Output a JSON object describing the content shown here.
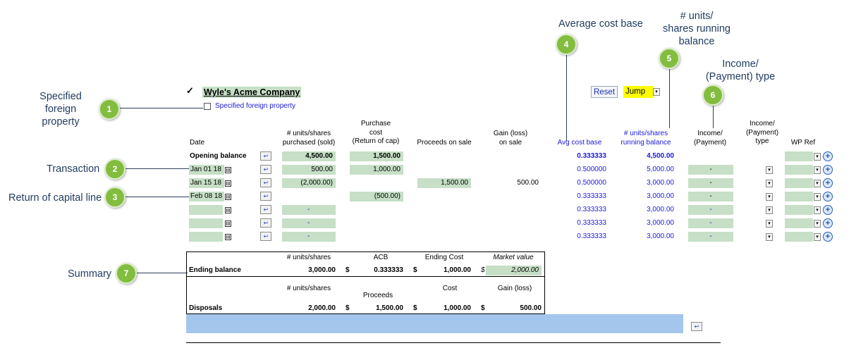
{
  "callouts": {
    "c1": {
      "num": "1",
      "line1": "Specified",
      "line2": "foreign property"
    },
    "c2": {
      "num": "2",
      "label": "Transaction"
    },
    "c3": {
      "num": "3",
      "label": "Return of capital line"
    },
    "c4": {
      "num": "4",
      "label": "Average cost base"
    },
    "c5": {
      "num": "5",
      "line1": "# units/",
      "line2": "shares running",
      "line3": "balance"
    },
    "c6": {
      "num": "6",
      "line1": "Income/",
      "line2": "(Payment) type"
    },
    "c7": {
      "num": "7",
      "label": "Summary"
    }
  },
  "company": {
    "checkbox": "✓",
    "name": "Wyle's Acme Company",
    "specified_label": "Specified foreign property"
  },
  "toolbar": {
    "reset": "Reset",
    "jump": "Jump"
  },
  "headers": {
    "date": "Date",
    "units_1": "# units/shares",
    "units_2": "purchased (sold)",
    "purchase_1": "Purchase",
    "purchase_2": "cost",
    "purchase_3": "(Return of cap)",
    "proceeds": "Proceeds on sale",
    "gain_1": "Gain (loss)",
    "gain_2": "on sale",
    "acb": "Avg cost base",
    "running_1": "# units/shares",
    "running_2": "running balance",
    "income_1": "Income/",
    "income_2": "(Payment)",
    "itype_1": "Income/",
    "itype_2": "(Payment)",
    "itype_3": "type",
    "wpref": "WP Ref"
  },
  "opening": {
    "label": "Opening balance",
    "units": "4,500.00",
    "cost": "1,500.00",
    "acb": "0.333333",
    "running": "4,500.00"
  },
  "rows": [
    {
      "date": "Jan 01 18",
      "units": "500.00",
      "cost": "1,000.00",
      "proceeds": "",
      "gain": "",
      "acb": "0.500000",
      "running": "5,000.00",
      "income": "-"
    },
    {
      "date": "Jan 15 18",
      "units": "(2,000.00)",
      "cost": "",
      "proceeds": "1,500.00",
      "gain": "500.00",
      "acb": "0.500000",
      "running": "3,000.00",
      "income": "-"
    },
    {
      "date": "Feb 08 18",
      "units": "",
      "cost": "(500.00)",
      "proceeds": "",
      "gain": "",
      "acb": "0.333333",
      "running": "3,000.00",
      "income": "-"
    },
    {
      "date": "",
      "units": "-",
      "cost": "",
      "proceeds": "",
      "gain": "",
      "acb": "0.333333",
      "running": "3,000.00",
      "income": "-"
    },
    {
      "date": "",
      "units": "-",
      "cost": "",
      "proceeds": "",
      "gain": "",
      "acb": "0.333333",
      "running": "3,000.00",
      "income": "-"
    },
    {
      "date": "",
      "units": "-",
      "cost": "",
      "proceeds": "",
      "gain": "",
      "acb": "0.333333",
      "running": "3,000.00",
      "income": "-"
    }
  ],
  "summary": {
    "hdr_units": "# units/shares",
    "hdr_acb": "ACB",
    "hdr_ending_cost": "Ending Cost",
    "hdr_market": "Market value",
    "ending_label": "Ending balance",
    "ending_units": "3,000.00",
    "dollar": "$",
    "ending_acb": "0.333333",
    "ending_cost": "1,000.00",
    "market": "2,000.00",
    "hdr2_units": "# units/shares",
    "hdr2_proceeds": "Proceeds",
    "hdr2_cost": "Cost",
    "hdr2_gain": "Gain (loss)",
    "disp_label": "Disposals",
    "disp_units": "2,000.00",
    "disp_proceeds": "1,500.00",
    "disp_cost": "1,000.00",
    "disp_gain": "500.00"
  },
  "icons": {
    "calendar": "calendar-icon",
    "row_action": "row-action-icon",
    "dropdown": "chevron-down-icon",
    "add": "plus-icon"
  },
  "colors": {
    "callout_badge": "#82bd3f",
    "input_cell": "#c6dfc6",
    "blue_text": "#1a1ad8",
    "jump_bg": "#ffff00",
    "bottom_bar": "#a4c6ec"
  }
}
